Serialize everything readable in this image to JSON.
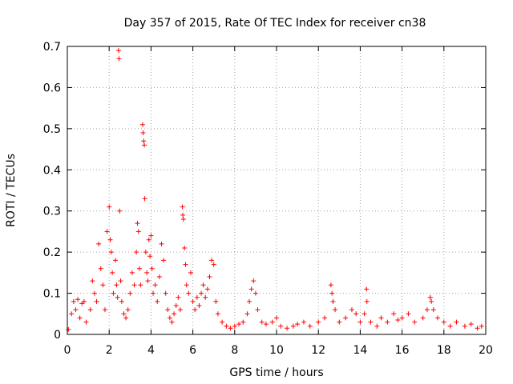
{
  "chart_data": {
    "type": "scatter",
    "title": "Day 357 of 2015, Rate Of TEC Index for receiver cn38",
    "xlabel": "GPS time / hours",
    "ylabel": "ROTI / TECUs",
    "xlim": [
      0,
      20
    ],
    "ylim": [
      0,
      0.7
    ],
    "xticks": [
      0,
      2,
      4,
      6,
      8,
      10,
      12,
      14,
      16,
      18,
      20
    ],
    "yticks": [
      0,
      0.1,
      0.2,
      0.3,
      0.4,
      0.5,
      0.6,
      0.7
    ],
    "xtick_labels": [
      "0",
      "2",
      "4",
      "6",
      "8",
      "10",
      "12",
      "14",
      "16",
      "18",
      "20"
    ],
    "ytick_labels": [
      "0",
      "0.1",
      "0.2",
      "0.3",
      "0.4",
      "0.5",
      "0.6",
      "0.7"
    ],
    "grid": true,
    "marker": "+",
    "marker_color": "#ff0000",
    "series": [
      {
        "name": "ROTI",
        "points": [
          [
            0.05,
            0.012
          ],
          [
            0.2,
            0.05
          ],
          [
            0.3,
            0.08
          ],
          [
            0.4,
            0.06
          ],
          [
            0.5,
            0.085
          ],
          [
            0.6,
            0.04
          ],
          [
            0.7,
            0.075
          ],
          [
            0.8,
            0.08
          ],
          [
            0.9,
            0.03
          ],
          [
            1.1,
            0.06
          ],
          [
            1.2,
            0.13
          ],
          [
            1.3,
            0.1
          ],
          [
            1.4,
            0.08
          ],
          [
            1.5,
            0.22
          ],
          [
            1.6,
            0.16
          ],
          [
            1.7,
            0.12
          ],
          [
            1.8,
            0.06
          ],
          [
            1.9,
            0.25
          ],
          [
            2.0,
            0.31
          ],
          [
            2.05,
            0.23
          ],
          [
            2.1,
            0.2
          ],
          [
            2.15,
            0.15
          ],
          [
            2.2,
            0.1
          ],
          [
            2.3,
            0.18
          ],
          [
            2.35,
            0.12
          ],
          [
            2.4,
            0.09
          ],
          [
            2.45,
            0.69
          ],
          [
            2.47,
            0.67
          ],
          [
            2.5,
            0.3
          ],
          [
            2.55,
            0.13
          ],
          [
            2.6,
            0.08
          ],
          [
            2.7,
            0.05
          ],
          [
            2.8,
            0.04
          ],
          [
            2.9,
            0.06
          ],
          [
            3.0,
            0.1
          ],
          [
            3.1,
            0.15
          ],
          [
            3.2,
            0.12
          ],
          [
            3.3,
            0.2
          ],
          [
            3.35,
            0.27
          ],
          [
            3.4,
            0.25
          ],
          [
            3.45,
            0.16
          ],
          [
            3.5,
            0.12
          ],
          [
            3.6,
            0.51
          ],
          [
            3.62,
            0.49
          ],
          [
            3.65,
            0.47
          ],
          [
            3.68,
            0.46
          ],
          [
            3.7,
            0.33
          ],
          [
            3.75,
            0.2
          ],
          [
            3.8,
            0.15
          ],
          [
            3.85,
            0.13
          ],
          [
            3.9,
            0.23
          ],
          [
            3.95,
            0.19
          ],
          [
            4.0,
            0.24
          ],
          [
            4.05,
            0.16
          ],
          [
            4.1,
            0.1
          ],
          [
            4.2,
            0.12
          ],
          [
            4.3,
            0.08
          ],
          [
            4.4,
            0.14
          ],
          [
            4.5,
            0.22
          ],
          [
            4.6,
            0.18
          ],
          [
            4.7,
            0.1
          ],
          [
            4.8,
            0.06
          ],
          [
            4.9,
            0.04
          ],
          [
            5.0,
            0.03
          ],
          [
            5.1,
            0.05
          ],
          [
            5.2,
            0.07
          ],
          [
            5.3,
            0.09
          ],
          [
            5.4,
            0.06
          ],
          [
            5.5,
            0.31
          ],
          [
            5.52,
            0.29
          ],
          [
            5.55,
            0.28
          ],
          [
            5.6,
            0.21
          ],
          [
            5.65,
            0.17
          ],
          [
            5.7,
            0.12
          ],
          [
            5.8,
            0.1
          ],
          [
            5.9,
            0.15
          ],
          [
            6.0,
            0.08
          ],
          [
            6.1,
            0.06
          ],
          [
            6.2,
            0.09
          ],
          [
            6.3,
            0.07
          ],
          [
            6.4,
            0.1
          ],
          [
            6.5,
            0.12
          ],
          [
            6.6,
            0.09
          ],
          [
            6.7,
            0.11
          ],
          [
            6.8,
            0.14
          ],
          [
            6.9,
            0.18
          ],
          [
            7.0,
            0.17
          ],
          [
            7.1,
            0.08
          ],
          [
            7.2,
            0.05
          ],
          [
            7.4,
            0.03
          ],
          [
            7.6,
            0.02
          ],
          [
            7.8,
            0.015
          ],
          [
            8.0,
            0.02
          ],
          [
            8.2,
            0.025
          ],
          [
            8.4,
            0.03
          ],
          [
            8.6,
            0.05
          ],
          [
            8.7,
            0.08
          ],
          [
            8.8,
            0.11
          ],
          [
            8.9,
            0.13
          ],
          [
            9.0,
            0.1
          ],
          [
            9.1,
            0.06
          ],
          [
            9.3,
            0.03
          ],
          [
            9.5,
            0.025
          ],
          [
            9.8,
            0.03
          ],
          [
            10.0,
            0.04
          ],
          [
            10.2,
            0.02
          ],
          [
            10.5,
            0.015
          ],
          [
            10.8,
            0.02
          ],
          [
            11.0,
            0.025
          ],
          [
            11.3,
            0.03
          ],
          [
            11.6,
            0.02
          ],
          [
            12.0,
            0.03
          ],
          [
            12.3,
            0.04
          ],
          [
            12.6,
            0.12
          ],
          [
            12.65,
            0.1
          ],
          [
            12.7,
            0.08
          ],
          [
            12.8,
            0.06
          ],
          [
            13.0,
            0.03
          ],
          [
            13.3,
            0.04
          ],
          [
            13.6,
            0.06
          ],
          [
            13.8,
            0.05
          ],
          [
            14.0,
            0.03
          ],
          [
            14.2,
            0.05
          ],
          [
            14.3,
            0.11
          ],
          [
            14.32,
            0.08
          ],
          [
            14.5,
            0.03
          ],
          [
            14.8,
            0.02
          ],
          [
            15.0,
            0.04
          ],
          [
            15.3,
            0.03
          ],
          [
            15.6,
            0.05
          ],
          [
            15.8,
            0.035
          ],
          [
            16.0,
            0.04
          ],
          [
            16.3,
            0.05
          ],
          [
            16.6,
            0.03
          ],
          [
            17.0,
            0.04
          ],
          [
            17.2,
            0.06
          ],
          [
            17.35,
            0.09
          ],
          [
            17.4,
            0.08
          ],
          [
            17.5,
            0.06
          ],
          [
            17.7,
            0.04
          ],
          [
            18.0,
            0.03
          ],
          [
            18.3,
            0.02
          ],
          [
            18.6,
            0.03
          ],
          [
            19.0,
            0.02
          ],
          [
            19.3,
            0.025
          ],
          [
            19.6,
            0.015
          ],
          [
            19.8,
            0.02
          ]
        ]
      }
    ]
  }
}
